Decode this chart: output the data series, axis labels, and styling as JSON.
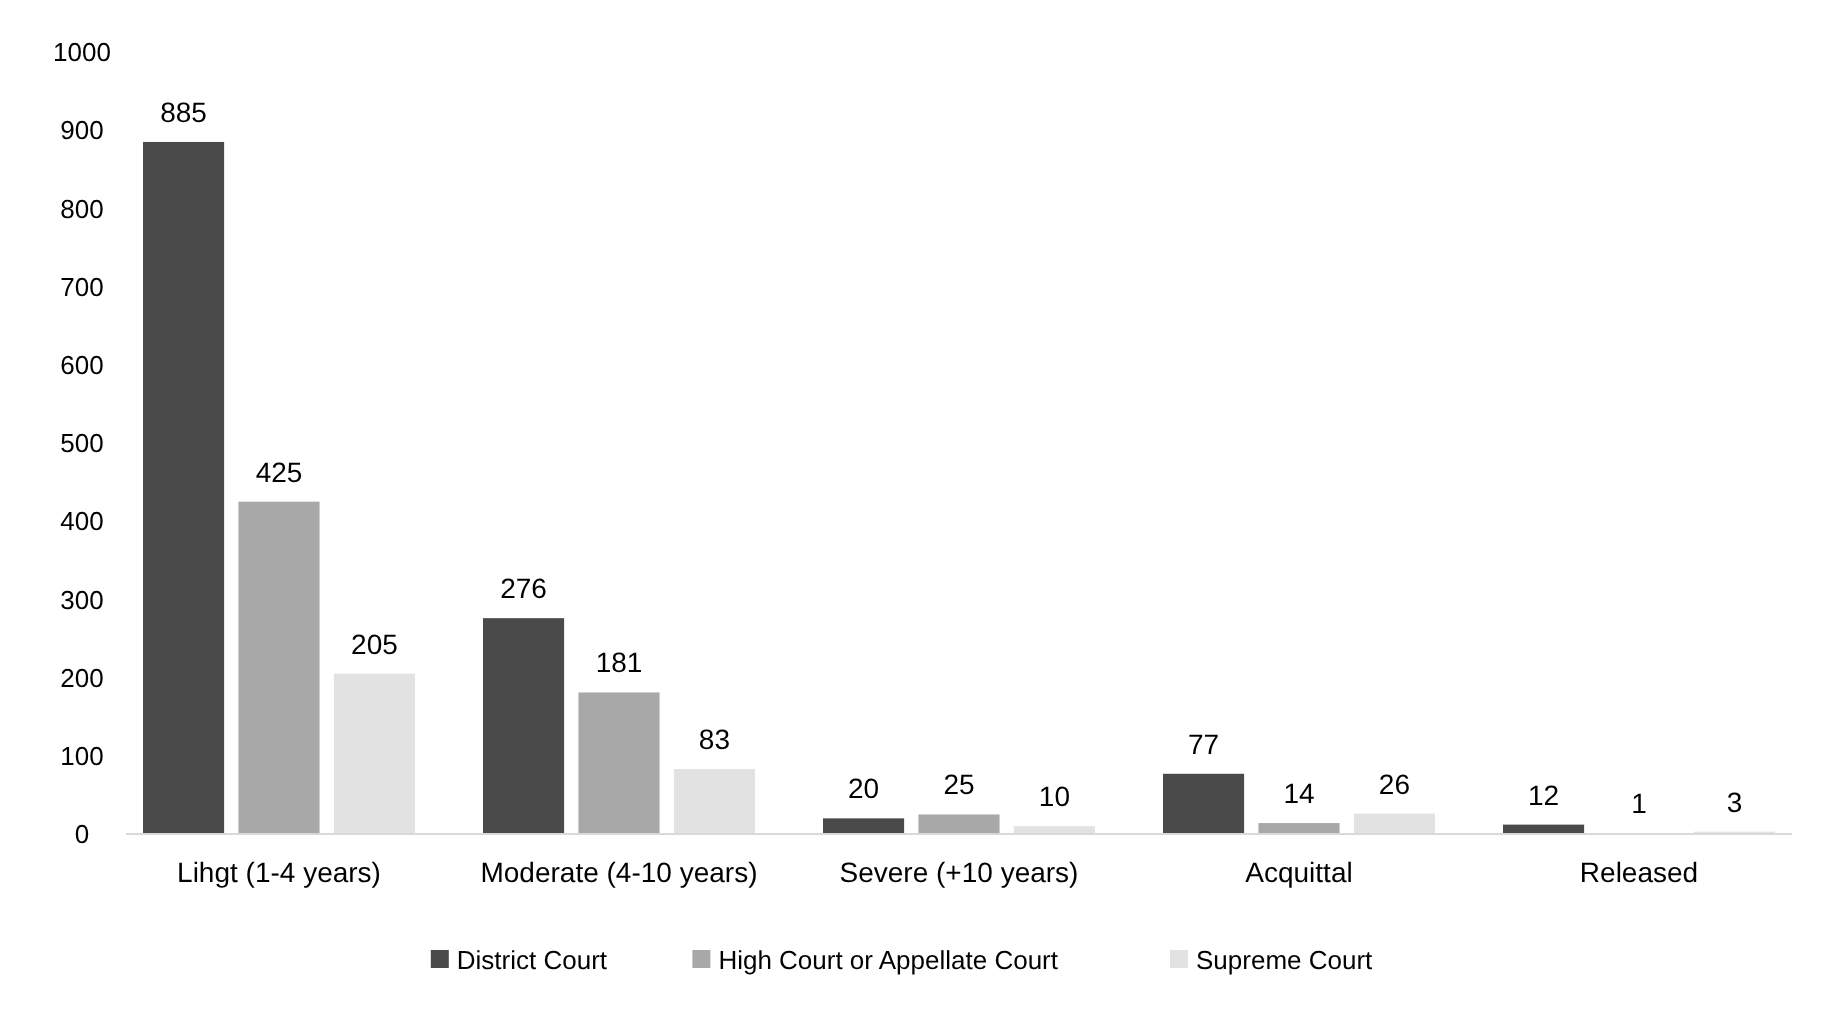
{
  "chart_data": {
    "type": "bar",
    "categories": [
      "Lihgt (1-4 years)",
      "Moderate (4-10 years)",
      "Severe (+10 years)",
      "Acquittal",
      "Released"
    ],
    "series": [
      {
        "name": "District Court",
        "color": "#4a4a4a",
        "values": [
          885,
          276,
          20,
          77,
          12
        ]
      },
      {
        "name": "High Court or Appellate Court",
        "color": "#a8a8a8",
        "values": [
          425,
          181,
          25,
          14,
          1
        ]
      },
      {
        "name": "Supreme Court",
        "color": "#e2e2e2",
        "values": [
          205,
          83,
          10,
          26,
          3
        ]
      }
    ],
    "ylim": [
      0,
      1000
    ],
    "yticks": [
      0,
      100,
      200,
      300,
      400,
      500,
      600,
      700,
      800,
      900,
      1000
    ],
    "grid": false,
    "legend": "bottom",
    "data_labels": true
  }
}
